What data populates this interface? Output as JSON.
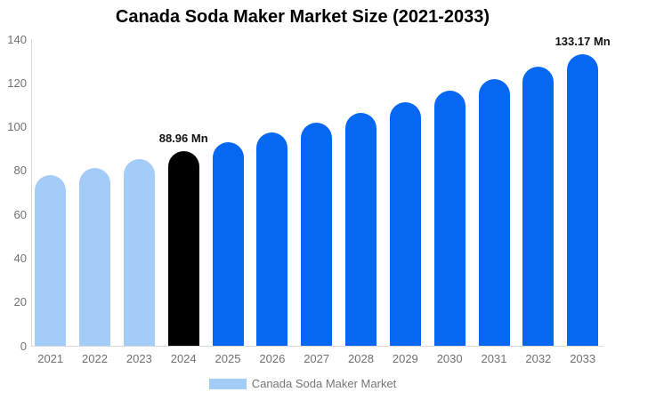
{
  "title": "Canada Soda Maker Market Size (2021-2033)",
  "legend": {
    "label": "Canada Soda Maker Market",
    "swatch_color": "#a3ccf8"
  },
  "colors": {
    "light_blue_bar": "#a3ccf8",
    "blue_bar": "#0567f2",
    "black_bar": "#000000",
    "axis_line": "#d9d9d9",
    "tick_text": "#707070",
    "annotation_text": "#111111"
  },
  "chart_data": {
    "type": "bar",
    "title": "Canada Soda Maker Market Size (2021-2033)",
    "categories": [
      "2021",
      "2022",
      "2023",
      "2024",
      "2025",
      "2026",
      "2027",
      "2028",
      "2029",
      "2030",
      "2031",
      "2032",
      "2033"
    ],
    "values": [
      77.8,
      81.3,
      85.1,
      88.96,
      93.0,
      97.3,
      101.7,
      106.4,
      111.3,
      116.4,
      121.7,
      127.3,
      133.17
    ],
    "bar_color_keys": [
      "light_blue_bar",
      "light_blue_bar",
      "light_blue_bar",
      "black_bar",
      "blue_bar",
      "blue_bar",
      "blue_bar",
      "blue_bar",
      "blue_bar",
      "blue_bar",
      "blue_bar",
      "blue_bar",
      "blue_bar"
    ],
    "xlabel": "",
    "ylabel": "",
    "ylim": [
      0,
      140
    ],
    "yticks": [
      0,
      20,
      40,
      60,
      80,
      100,
      120,
      140
    ],
    "grid": false,
    "legend_position": "bottom",
    "legend_entries": [
      "Canada Soda Maker Market"
    ],
    "annotations": [
      {
        "category_index": 3,
        "text": "88.96 Mn"
      },
      {
        "category_index": 12,
        "text": "133.17 Mn"
      }
    ]
  }
}
